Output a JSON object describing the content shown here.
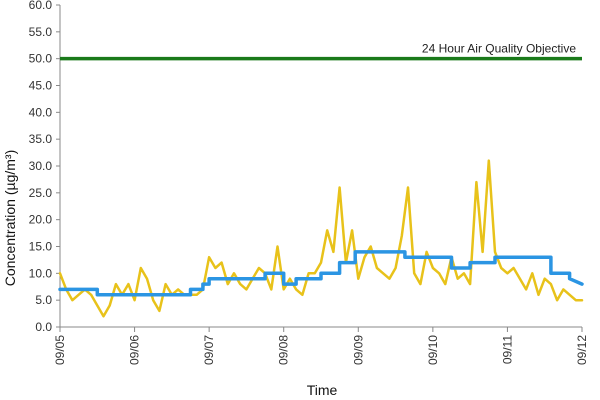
{
  "chart_data": {
    "type": "line",
    "ylabel": "Concentration (µg/m³)",
    "xlabel": "Time",
    "ylim": [
      0,
      60
    ],
    "yticks": [
      0,
      5,
      10,
      15,
      20,
      25,
      30,
      35,
      40,
      45,
      50,
      55,
      60
    ],
    "ytick_labels": [
      "0.0",
      "5.0",
      "10.0",
      "15.0",
      "20.0",
      "25.0",
      "30.0",
      "35.0",
      "40.0",
      "45.0",
      "50.0",
      "55.0",
      "60.0"
    ],
    "xlim": [
      "09/05",
      "09/12"
    ],
    "xtick_labels": [
      "09/05",
      "09/06",
      "09/07",
      "09/08",
      "09/09",
      "09/10",
      "09/11",
      "09/12"
    ],
    "grid": false,
    "objective": {
      "label": "24 Hour Air Quality Objective",
      "value": 50,
      "color": "#1a7a1a"
    },
    "series": [
      {
        "color": "#e8c21a",
        "x": [
          "09/05 00:00",
          "09/05 02:00",
          "09/05 04:00",
          "09/05 06:00",
          "09/05 08:00",
          "09/05 10:00",
          "09/05 12:00",
          "09/05 14:00",
          "09/05 16:00",
          "09/05 18:00",
          "09/05 20:00",
          "09/05 22:00",
          "09/06 00:00",
          "09/06 02:00",
          "09/06 04:00",
          "09/06 06:00",
          "09/06 08:00",
          "09/06 10:00",
          "09/06 12:00",
          "09/06 14:00",
          "09/06 16:00",
          "09/06 18:00",
          "09/06 20:00",
          "09/06 22:00",
          "09/07 00:00",
          "09/07 02:00",
          "09/07 04:00",
          "09/07 06:00",
          "09/07 08:00",
          "09/07 10:00",
          "09/07 12:00",
          "09/07 14:00",
          "09/07 16:00",
          "09/07 18:00",
          "09/07 20:00",
          "09/07 22:00",
          "09/08 00:00",
          "09/08 02:00",
          "09/08 04:00",
          "09/08 06:00",
          "09/08 08:00",
          "09/08 10:00",
          "09/08 12:00",
          "09/08 14:00",
          "09/08 16:00",
          "09/08 18:00",
          "09/08 20:00",
          "09/08 22:00",
          "09/09 00:00",
          "09/09 02:00",
          "09/09 04:00",
          "09/09 06:00",
          "09/09 08:00",
          "09/09 10:00",
          "09/09 12:00",
          "09/09 14:00",
          "09/09 16:00",
          "09/09 18:00",
          "09/09 20:00",
          "09/09 22:00",
          "09/10 00:00",
          "09/10 02:00",
          "09/10 04:00",
          "09/10 06:00",
          "09/10 08:00",
          "09/10 10:00",
          "09/10 12:00",
          "09/10 14:00",
          "09/10 16:00",
          "09/10 18:00",
          "09/10 20:00",
          "09/10 22:00",
          "09/11 00:00",
          "09/11 02:00",
          "09/11 04:00",
          "09/11 06:00",
          "09/11 08:00",
          "09/11 10:00",
          "09/11 12:00",
          "09/11 14:00",
          "09/11 16:00",
          "09/11 18:00",
          "09/11 20:00",
          "09/11 22:00",
          "09/12 00:00"
        ],
        "values": [
          10,
          7,
          5,
          6,
          7,
          6,
          4,
          2,
          4,
          8,
          6,
          8,
          5,
          11,
          9,
          5,
          3,
          8,
          6,
          7,
          6,
          6,
          6,
          7,
          13,
          11,
          12,
          8,
          10,
          8,
          7,
          9,
          11,
          10,
          7,
          15,
          7,
          9,
          7,
          6,
          10,
          10,
          12,
          18,
          14,
          26,
          12,
          18,
          9,
          13,
          15,
          11,
          10,
          9,
          11,
          17,
          26,
          10,
          8,
          14,
          11,
          10,
          8,
          13,
          9,
          10,
          8,
          27,
          14,
          31,
          14,
          11,
          10,
          11,
          9,
          7,
          10,
          6,
          9,
          8,
          5,
          7,
          6,
          5,
          5
        ]
      },
      {
        "color": "#2b95e3",
        "x": [
          "09/05 00:00",
          "09/05 12:00",
          "09/05 12:00",
          "09/06 18:00",
          "09/06 18:00",
          "09/06 22:00",
          "09/06 22:00",
          "09/07 00:00",
          "09/07 00:00",
          "09/07 12:00",
          "09/07 12:00",
          "09/07 18:00",
          "09/07 18:00",
          "09/08 00:00",
          "09/08 00:00",
          "09/08 04:00",
          "09/08 04:00",
          "09/08 12:00",
          "09/08 12:00",
          "09/08 18:00",
          "09/08 18:00",
          "09/08 23:00",
          "09/08 23:00",
          "09/09 15:00",
          "09/09 15:00",
          "09/10 06:00",
          "09/10 06:00",
          "09/10 12:00",
          "09/10 12:00",
          "09/10 20:00",
          "09/10 20:00",
          "09/11 14:00",
          "09/11 14:00",
          "09/11 20:00",
          "09/11 20:00",
          "09/12 00:00"
        ],
        "values": [
          7,
          7,
          6,
          6,
          7,
          7,
          8,
          8,
          9,
          9,
          9,
          9,
          10,
          10,
          8,
          8,
          9,
          9,
          10,
          10,
          12,
          12,
          14,
          14,
          13,
          13,
          11,
          11,
          12,
          12,
          13,
          13,
          10,
          10,
          9,
          8
        ]
      }
    ]
  }
}
